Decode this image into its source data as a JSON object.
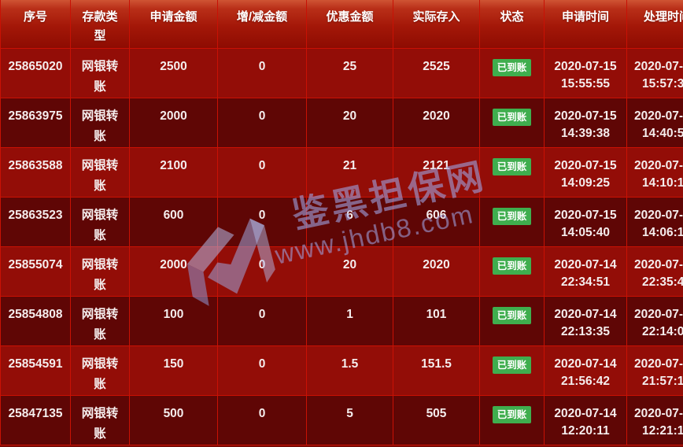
{
  "colors": {
    "grid_line": "#c91104",
    "row_bright": "#930d07",
    "row_dark": "#5f0605",
    "header_top": "#cf5434",
    "header_bottom": "#8e0c02",
    "badge_green": "#3fae4e",
    "watermark_purple": "#9ea3e2"
  },
  "watermark": {
    "title": "鉴黑担保网",
    "url": "www.jhdb8.com",
    "logo": "m-ribbon-logo"
  },
  "table": {
    "columns": [
      {
        "key": "serial-number",
        "label": "序号",
        "kind": "text"
      },
      {
        "key": "deposit-type",
        "label": "存款类型",
        "kind": "wrap"
      },
      {
        "key": "apply-amount",
        "label": "申请金额",
        "kind": "text"
      },
      {
        "key": "adjust-amount",
        "label": "增/减金额",
        "kind": "text"
      },
      {
        "key": "discount-amount",
        "label": "优惠金额",
        "kind": "text"
      },
      {
        "key": "actual-deposit",
        "label": "实际存入",
        "kind": "text"
      },
      {
        "key": "status",
        "label": "状态",
        "kind": "badge"
      },
      {
        "key": "apply-time",
        "label": "申请时间",
        "kind": "datetime"
      },
      {
        "key": "process-time",
        "label": "处理时间",
        "kind": "datetime-left"
      }
    ],
    "rows": [
      {
        "serial-number": "25865020",
        "deposit-type": "网银转账",
        "apply-amount": "2500",
        "adjust-amount": "0",
        "discount-amount": "25",
        "actual-deposit": "2525",
        "status": "已到账",
        "apply-date": "2020-07-15",
        "apply-clock": "15:55:55",
        "process-date": "2020-07-",
        "process-clock": "15:57:3"
      },
      {
        "serial-number": "25863975",
        "deposit-type": "网银转账",
        "apply-amount": "2000",
        "adjust-amount": "0",
        "discount-amount": "20",
        "actual-deposit": "2020",
        "status": "已到账",
        "apply-date": "2020-07-15",
        "apply-clock": "14:39:38",
        "process-date": "2020-07-",
        "process-clock": "14:40:5"
      },
      {
        "serial-number": "25863588",
        "deposit-type": "网银转账",
        "apply-amount": "2100",
        "adjust-amount": "0",
        "discount-amount": "21",
        "actual-deposit": "2121",
        "status": "已到账",
        "apply-date": "2020-07-15",
        "apply-clock": "14:09:25",
        "process-date": "2020-07-",
        "process-clock": "14:10:1"
      },
      {
        "serial-number": "25863523",
        "deposit-type": "网银转账",
        "apply-amount": "600",
        "adjust-amount": "0",
        "discount-amount": "6",
        "actual-deposit": "606",
        "status": "已到账",
        "apply-date": "2020-07-15",
        "apply-clock": "14:05:40",
        "process-date": "2020-07-",
        "process-clock": "14:06:1"
      },
      {
        "serial-number": "25855074",
        "deposit-type": "网银转账",
        "apply-amount": "2000",
        "adjust-amount": "0",
        "discount-amount": "20",
        "actual-deposit": "2020",
        "status": "已到账",
        "apply-date": "2020-07-14",
        "apply-clock": "22:34:51",
        "process-date": "2020-07-",
        "process-clock": "22:35:4"
      },
      {
        "serial-number": "25854808",
        "deposit-type": "网银转账",
        "apply-amount": "100",
        "adjust-amount": "0",
        "discount-amount": "1",
        "actual-deposit": "101",
        "status": "已到账",
        "apply-date": "2020-07-14",
        "apply-clock": "22:13:35",
        "process-date": "2020-07-",
        "process-clock": "22:14:0"
      },
      {
        "serial-number": "25854591",
        "deposit-type": "网银转账",
        "apply-amount": "150",
        "adjust-amount": "0",
        "discount-amount": "1.5",
        "actual-deposit": "151.5",
        "status": "已到账",
        "apply-date": "2020-07-14",
        "apply-clock": "21:56:42",
        "process-date": "2020-07-",
        "process-clock": "21:57:1"
      },
      {
        "serial-number": "25847135",
        "deposit-type": "网银转账",
        "apply-amount": "500",
        "adjust-amount": "0",
        "discount-amount": "5",
        "actual-deposit": "505",
        "status": "已到账",
        "apply-date": "2020-07-14",
        "apply-clock": "12:20:11",
        "process-date": "2020-07-",
        "process-clock": "12:21:1"
      }
    ]
  }
}
